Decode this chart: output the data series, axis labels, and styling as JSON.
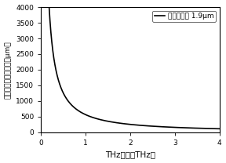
{
  "title": "",
  "xlabel": "THz频率（THz）",
  "ylabel": "一阶准相位匹配长度（μm）",
  "xlim": [
    0,
    4
  ],
  "ylim": [
    0,
    4000
  ],
  "xticks": [
    0,
    1,
    2,
    3,
    4
  ],
  "yticks": [
    0,
    500,
    1000,
    1500,
    2000,
    2500,
    3000,
    3500,
    4000
  ],
  "legend_label": "泵浦光波长 1.9μm",
  "line_color": "#000000",
  "background_color": "#ffffff",
  "xlabel_fontsize": 7.5,
  "ylabel_fontsize": 6.5,
  "tick_fontsize": 6.5,
  "legend_fontsize": 6.5,
  "curve_A": 850.0,
  "curve_alpha": 1.0,
  "curve_start": 0.2,
  "curve_end": 4.0
}
